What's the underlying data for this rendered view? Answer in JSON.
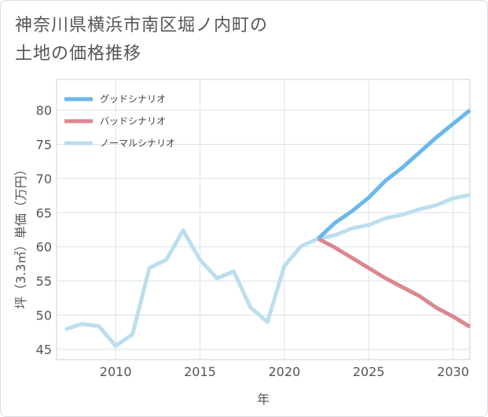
{
  "title_lines": [
    "神奈川県横浜市南区堀ノ内町の",
    "土地の価格推移"
  ],
  "chart_data": {
    "type": "line",
    "title": "神奈川県横浜市南区堀ノ内町の土地の価格推移",
    "xlabel": "年",
    "ylabel": "坪（3.3㎡）単価（万円）",
    "xlim": [
      2006.5,
      2031
    ],
    "ylim": [
      43.5,
      84.5
    ],
    "xticks": [
      2010,
      2015,
      2020,
      2025,
      2030
    ],
    "yticks": [
      45,
      50,
      55,
      60,
      65,
      70,
      75,
      80
    ],
    "grid": true,
    "legend_position": "top-left",
    "series": [
      {
        "name": "グッドシナリオ",
        "color": "#6bb8ea",
        "x": [
          2022,
          2023,
          2024,
          2025,
          2026,
          2027,
          2028,
          2029,
          2030,
          2031
        ],
        "values": [
          61.2,
          63.5,
          65.2,
          67.2,
          69.7,
          71.6,
          73.8,
          76.0,
          78.0,
          80.0
        ]
      },
      {
        "name": "バッドシナリオ",
        "color": "#dc8790",
        "x": [
          2022,
          2023,
          2024,
          2025,
          2026,
          2027,
          2028,
          2029,
          2030,
          2031
        ],
        "values": [
          61.2,
          59.9,
          58.4,
          56.9,
          55.4,
          54.1,
          52.8,
          51.1,
          49.8,
          48.3
        ]
      },
      {
        "name": "ノーマルシナリオ",
        "color": "#bcdeed",
        "x": [
          2007,
          2008,
          2009,
          2010,
          2011,
          2012,
          2013,
          2014,
          2015,
          2016,
          2017,
          2018,
          2019,
          2020,
          2021,
          2022,
          2023,
          2024,
          2025,
          2026,
          2027,
          2028,
          2029,
          2030,
          2031
        ],
        "values": [
          47.9,
          48.7,
          48.4,
          45.5,
          47.2,
          56.9,
          58.1,
          62.4,
          58.1,
          55.4,
          56.4,
          51.1,
          49.0,
          57.2,
          60.1,
          61.2,
          61.7,
          62.7,
          63.2,
          64.2,
          64.7,
          65.5,
          66.1,
          67.1,
          67.6
        ]
      }
    ]
  }
}
